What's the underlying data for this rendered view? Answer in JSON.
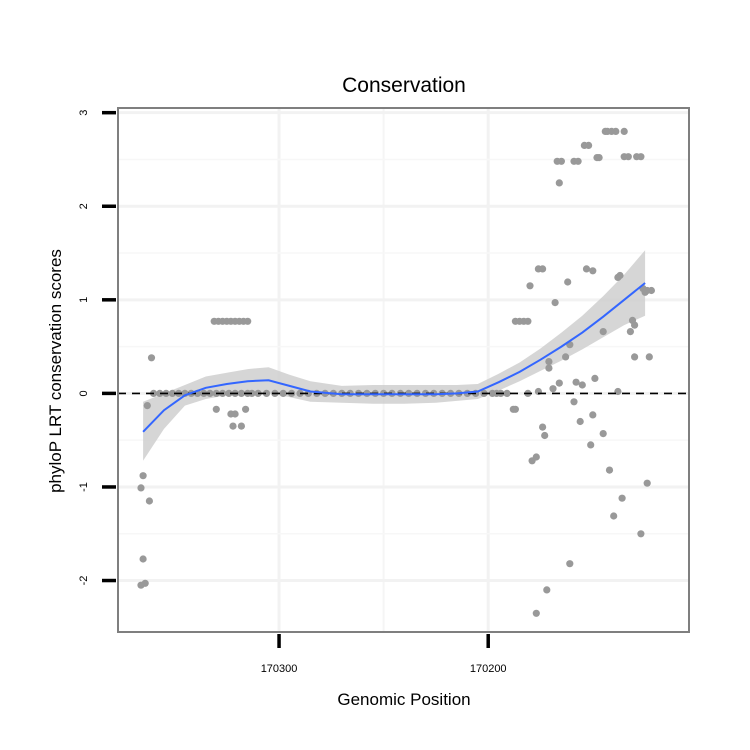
{
  "chart_data": {
    "type": "scatter",
    "title": "Conservation",
    "xlabel": "Genomic Position",
    "ylabel": "phyloP LRT conservation scores",
    "x_reversed": true,
    "xlim": [
      170377,
      170104
    ],
    "ylim": [
      -2.55,
      3.05
    ],
    "x_ticks": [
      170300,
      170200
    ],
    "x_tick_labels": [
      "170300",
      "170200"
    ],
    "y_ticks": [
      -2,
      -1,
      0,
      1,
      2,
      3
    ],
    "y_tick_labels": [
      "-2",
      "-1",
      "0",
      "1",
      "2",
      "3"
    ],
    "reference_line": {
      "y": 0,
      "style": "dashed"
    },
    "grid": true,
    "legend": "none",
    "point_color": "#999999",
    "smooth_color": "#3366ff",
    "ribbon_color": "#cccccc",
    "points": [
      [
        170366,
        -2.05
      ],
      [
        170364,
        -2.03
      ],
      [
        170365,
        -1.77
      ],
      [
        170365,
        -0.88
      ],
      [
        170366,
        -1.01
      ],
      [
        170362,
        -1.15
      ],
      [
        170363,
        -0.13
      ],
      [
        170361,
        0.38
      ],
      [
        170360,
        0.0
      ],
      [
        170357,
        0.0
      ],
      [
        170354,
        0.0
      ],
      [
        170351,
        0.0
      ],
      [
        170348,
        0.0
      ],
      [
        170345,
        0.0
      ],
      [
        170342,
        0.0
      ],
      [
        170339,
        0.0
      ],
      [
        170336,
        0.0
      ],
      [
        170333,
        0.0
      ],
      [
        170330,
        0.0
      ],
      [
        170327,
        0.0
      ],
      [
        170324,
        0.0
      ],
      [
        170321,
        0.0
      ],
      [
        170318,
        0.0
      ],
      [
        170315,
        0.0
      ],
      [
        170330,
        -0.17
      ],
      [
        170323,
        -0.22
      ],
      [
        170321,
        -0.22
      ],
      [
        170322,
        -0.35
      ],
      [
        170318,
        -0.35
      ],
      [
        170316,
        -0.17
      ],
      [
        170331,
        0.77
      ],
      [
        170329,
        0.77
      ],
      [
        170327,
        0.77
      ],
      [
        170325,
        0.77
      ],
      [
        170323,
        0.77
      ],
      [
        170321,
        0.77
      ],
      [
        170319,
        0.77
      ],
      [
        170317,
        0.77
      ],
      [
        170315,
        0.77
      ],
      [
        170313,
        0.0
      ],
      [
        170310,
        0.0
      ],
      [
        170306,
        0.0
      ],
      [
        170302,
        0.0
      ],
      [
        170298,
        0.0
      ],
      [
        170294,
        0.0
      ],
      [
        170290,
        0.0
      ],
      [
        170286,
        0.0
      ],
      [
        170282,
        0.0
      ],
      [
        170278,
        0.0
      ],
      [
        170274,
        0.0
      ],
      [
        170270,
        0.0
      ],
      [
        170266,
        0.0
      ],
      [
        170262,
        0.0
      ],
      [
        170258,
        0.0
      ],
      [
        170254,
        0.0
      ],
      [
        170250,
        0.0
      ],
      [
        170246,
        0.0
      ],
      [
        170242,
        0.0
      ],
      [
        170238,
        0.0
      ],
      [
        170234,
        0.0
      ],
      [
        170230,
        0.0
      ],
      [
        170226,
        0.0
      ],
      [
        170222,
        0.0
      ],
      [
        170218,
        0.0
      ],
      [
        170214,
        0.0
      ],
      [
        170210,
        0.0
      ],
      [
        170206,
        0.0
      ],
      [
        170202,
        0.0
      ],
      [
        170198,
        0.0
      ],
      [
        170194,
        0.0
      ],
      [
        170191,
        0.0
      ],
      [
        170188,
        -0.17
      ],
      [
        170187,
        -0.17
      ],
      [
        170187,
        0.77
      ],
      [
        170185,
        0.77
      ],
      [
        170183,
        0.77
      ],
      [
        170181,
        0.77
      ],
      [
        170181,
        0.0
      ],
      [
        170180,
        1.15
      ],
      [
        170179,
        -0.72
      ],
      [
        170177,
        -0.68
      ],
      [
        170176,
        0.02
      ],
      [
        170176,
        1.33
      ],
      [
        170174,
        1.33
      ],
      [
        170174,
        -0.36
      ],
      [
        170173,
        -0.45
      ],
      [
        170172,
        -2.1
      ],
      [
        170171,
        0.27
      ],
      [
        170171,
        0.34
      ],
      [
        170169,
        0.05
      ],
      [
        170168,
        0.97
      ],
      [
        170167,
        2.48
      ],
      [
        170166,
        2.25
      ],
      [
        170166,
        0.11
      ],
      [
        170165,
        2.48
      ],
      [
        170162,
        1.19
      ],
      [
        170163,
        0.39
      ],
      [
        170161,
        -1.82
      ],
      [
        170161,
        0.52
      ],
      [
        170159,
        2.48
      ],
      [
        170157,
        2.48
      ],
      [
        170158,
        0.12
      ],
      [
        170159,
        -0.09
      ],
      [
        170156,
        -0.3
      ],
      [
        170155,
        0.09
      ],
      [
        170154,
        2.65
      ],
      [
        170152,
        2.65
      ],
      [
        170153,
        1.33
      ],
      [
        170151,
        -0.55
      ],
      [
        170150,
        1.31
      ],
      [
        170150,
        -0.23
      ],
      [
        170149,
        0.16
      ],
      [
        170148,
        2.52
      ],
      [
        170147,
        2.52
      ],
      [
        170145,
        0.66
      ],
      [
        170145,
        -0.43
      ],
      [
        170144,
        2.8
      ],
      [
        170143,
        2.8
      ],
      [
        170142,
        -0.82
      ],
      [
        170141,
        2.8
      ],
      [
        170140,
        -1.31
      ],
      [
        170139,
        2.8
      ],
      [
        170138,
        1.24
      ],
      [
        170138,
        0.02
      ],
      [
        170137,
        1.26
      ],
      [
        170136,
        -1.12
      ],
      [
        170135,
        2.53
      ],
      [
        170133,
        2.53
      ],
      [
        170135,
        2.8
      ],
      [
        170131,
        0.78
      ],
      [
        170132,
        0.66
      ],
      [
        170130,
        0.73
      ],
      [
        170130,
        0.39
      ],
      [
        170129,
        2.53
      ],
      [
        170127,
        2.53
      ],
      [
        170127,
        -1.5
      ],
      [
        170126,
        1.12
      ],
      [
        170125,
        1.08
      ],
      [
        170124,
        1.1
      ],
      [
        170124,
        -0.96
      ],
      [
        170123,
        0.39
      ],
      [
        170122,
        1.1
      ],
      [
        170177,
        -2.35
      ],
      [
        170196,
        0.0
      ]
    ],
    "smooth": [
      [
        170365,
        -0.41
      ],
      [
        170355,
        -0.18
      ],
      [
        170345,
        -0.02
      ],
      [
        170335,
        0.06
      ],
      [
        170325,
        0.1
      ],
      [
        170315,
        0.13
      ],
      [
        170305,
        0.14
      ],
      [
        170295,
        0.08
      ],
      [
        170285,
        0.02
      ],
      [
        170270,
        -0.01
      ],
      [
        170255,
        -0.01
      ],
      [
        170240,
        -0.01
      ],
      [
        170225,
        -0.01
      ],
      [
        170215,
        0.0
      ],
      [
        170205,
        0.02
      ],
      [
        170195,
        0.12
      ],
      [
        170185,
        0.23
      ],
      [
        170175,
        0.36
      ],
      [
        170165,
        0.5
      ],
      [
        170155,
        0.65
      ],
      [
        170145,
        0.82
      ],
      [
        170135,
        1.0
      ],
      [
        170125,
        1.18
      ]
    ],
    "ribbon": [
      [
        170365,
        -0.72,
        -0.09
      ],
      [
        170355,
        -0.38,
        0.0
      ],
      [
        170345,
        -0.13,
        0.09
      ],
      [
        170335,
        -0.06,
        0.18
      ],
      [
        170325,
        -0.02,
        0.22
      ],
      [
        170315,
        0.0,
        0.26
      ],
      [
        170305,
        0.0,
        0.28
      ],
      [
        170295,
        -0.04,
        0.2
      ],
      [
        170285,
        -0.09,
        0.13
      ],
      [
        170270,
        -0.1,
        0.08
      ],
      [
        170255,
        -0.11,
        0.09
      ],
      [
        170240,
        -0.11,
        0.09
      ],
      [
        170225,
        -0.1,
        0.09
      ],
      [
        170215,
        -0.08,
        0.09
      ],
      [
        170205,
        -0.06,
        0.1
      ],
      [
        170195,
        0.03,
        0.21
      ],
      [
        170185,
        0.13,
        0.33
      ],
      [
        170175,
        0.24,
        0.48
      ],
      [
        170165,
        0.35,
        0.65
      ],
      [
        170155,
        0.47,
        0.83
      ],
      [
        170145,
        0.6,
        1.04
      ],
      [
        170135,
        0.73,
        1.27
      ],
      [
        170125,
        0.83,
        1.53
      ]
    ]
  }
}
